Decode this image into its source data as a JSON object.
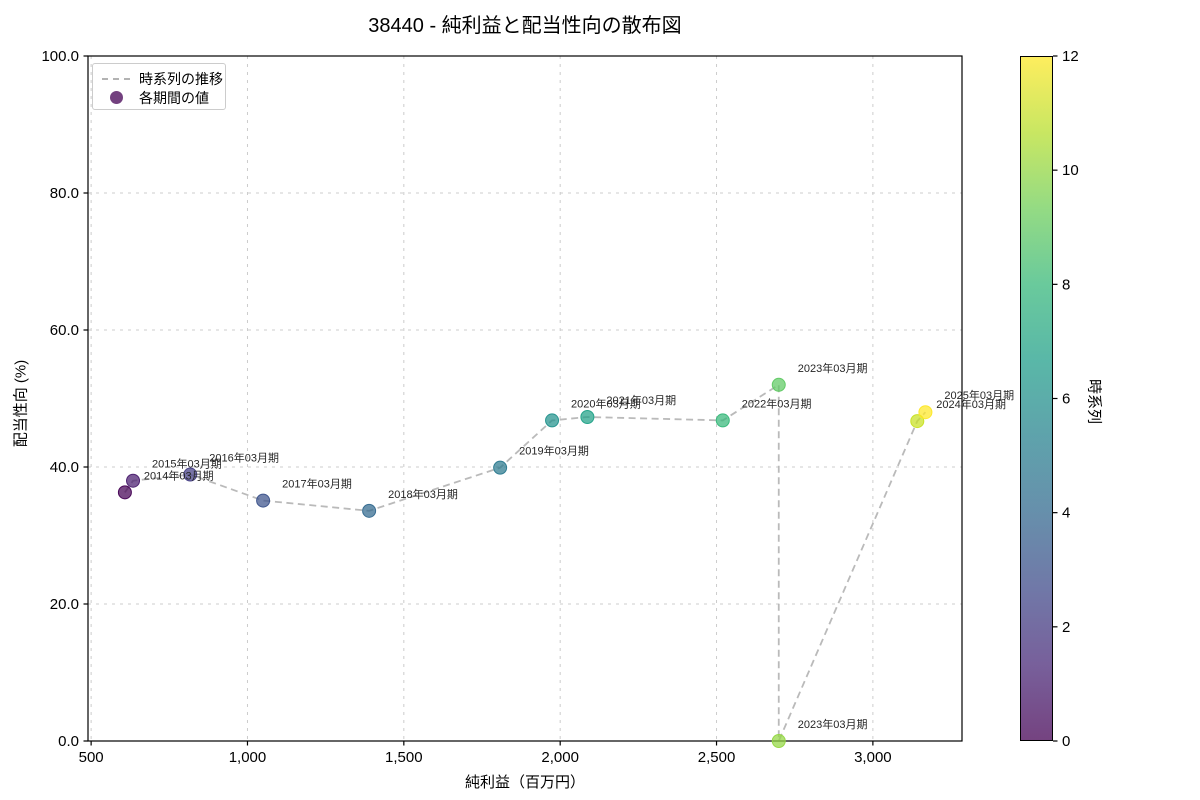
{
  "title": "38440 - 純利益と配当性向の散布図",
  "legend": {
    "line_label": "時系列の推移",
    "point_label": "各期間の値"
  },
  "colors": {
    "trend_line": "#b3b3b3",
    "grid": "#cccccc",
    "spine": "#000000",
    "annotation_text": "#262626",
    "legend_marker": "#440154"
  },
  "chart_data": {
    "type": "scatter",
    "title": "38440 - 純利益と配当性向の散布図",
    "xlabel": "純利益（百万円）",
    "ylabel": "配当性向 (%)",
    "xlim": [
      490,
      3285
    ],
    "ylim": [
      0,
      100
    ],
    "grid": true,
    "legend_position": "upper-left",
    "x_ticks": [
      500,
      1000,
      1500,
      2000,
      2500,
      3000
    ],
    "x_tick_labels": [
      "500",
      "1,000",
      "1,500",
      "2,000",
      "2,500",
      "3,000"
    ],
    "y_ticks": [
      0,
      20,
      40,
      60,
      80,
      100
    ],
    "y_tick_labels": [
      "0.0",
      "20.0",
      "40.0",
      "60.0",
      "80.0",
      "100.0"
    ],
    "series_name": "時系列の推移",
    "points": [
      {
        "label": "2014年03月期",
        "x": 608,
        "y": 36.3,
        "t": 0,
        "color": "#440154"
      },
      {
        "label": "2015年03月期",
        "x": 634,
        "y": 38.0,
        "t": 1,
        "color": "#481b6d"
      },
      {
        "label": "2016年03月期",
        "x": 817,
        "y": 38.9,
        "t": 2,
        "color": "#433d84"
      },
      {
        "label": "2017年03月期",
        "x": 1050,
        "y": 35.1,
        "t": 3,
        "color": "#3b528b"
      },
      {
        "label": "2018年03月期",
        "x": 1389,
        "y": 33.6,
        "t": 4,
        "color": "#31688e"
      },
      {
        "label": "2019年03月期",
        "x": 1808,
        "y": 39.9,
        "t": 5,
        "color": "#29788e"
      },
      {
        "label": "2020年03月期",
        "x": 1974,
        "y": 46.8,
        "t": 6,
        "color": "#21918c"
      },
      {
        "label": "2021年03月期",
        "x": 2087,
        "y": 47.3,
        "t": 7,
        "color": "#1fa187"
      },
      {
        "label": "2022年03月期",
        "x": 2520,
        "y": 46.8,
        "t": 8,
        "color": "#35b779"
      },
      {
        "label": "2023年03月期",
        "x": 2699,
        "y": 52.0,
        "t": 9,
        "color": "#5ec962"
      },
      {
        "label": "2023年03月期",
        "x": 2699,
        "y": 0.0,
        "t": 10,
        "color": "#93d741"
      },
      {
        "label": "2024年03月期",
        "x": 3142,
        "y": 46.7,
        "t": 11,
        "color": "#c8e020"
      },
      {
        "label": "2025年03月期",
        "x": 3168,
        "y": 48.0,
        "t": 12,
        "color": "#fde725"
      }
    ],
    "colorbar": {
      "label": "時系列",
      "min": 0,
      "max": 12,
      "ticks": [
        0,
        2,
        4,
        6,
        8,
        10,
        12
      ],
      "stops": [
        "#440154",
        "#482878",
        "#3e4989",
        "#31688e",
        "#26828e",
        "#1f9e89",
        "#35b779",
        "#6ece58",
        "#b5de2b",
        "#fde725"
      ]
    }
  }
}
